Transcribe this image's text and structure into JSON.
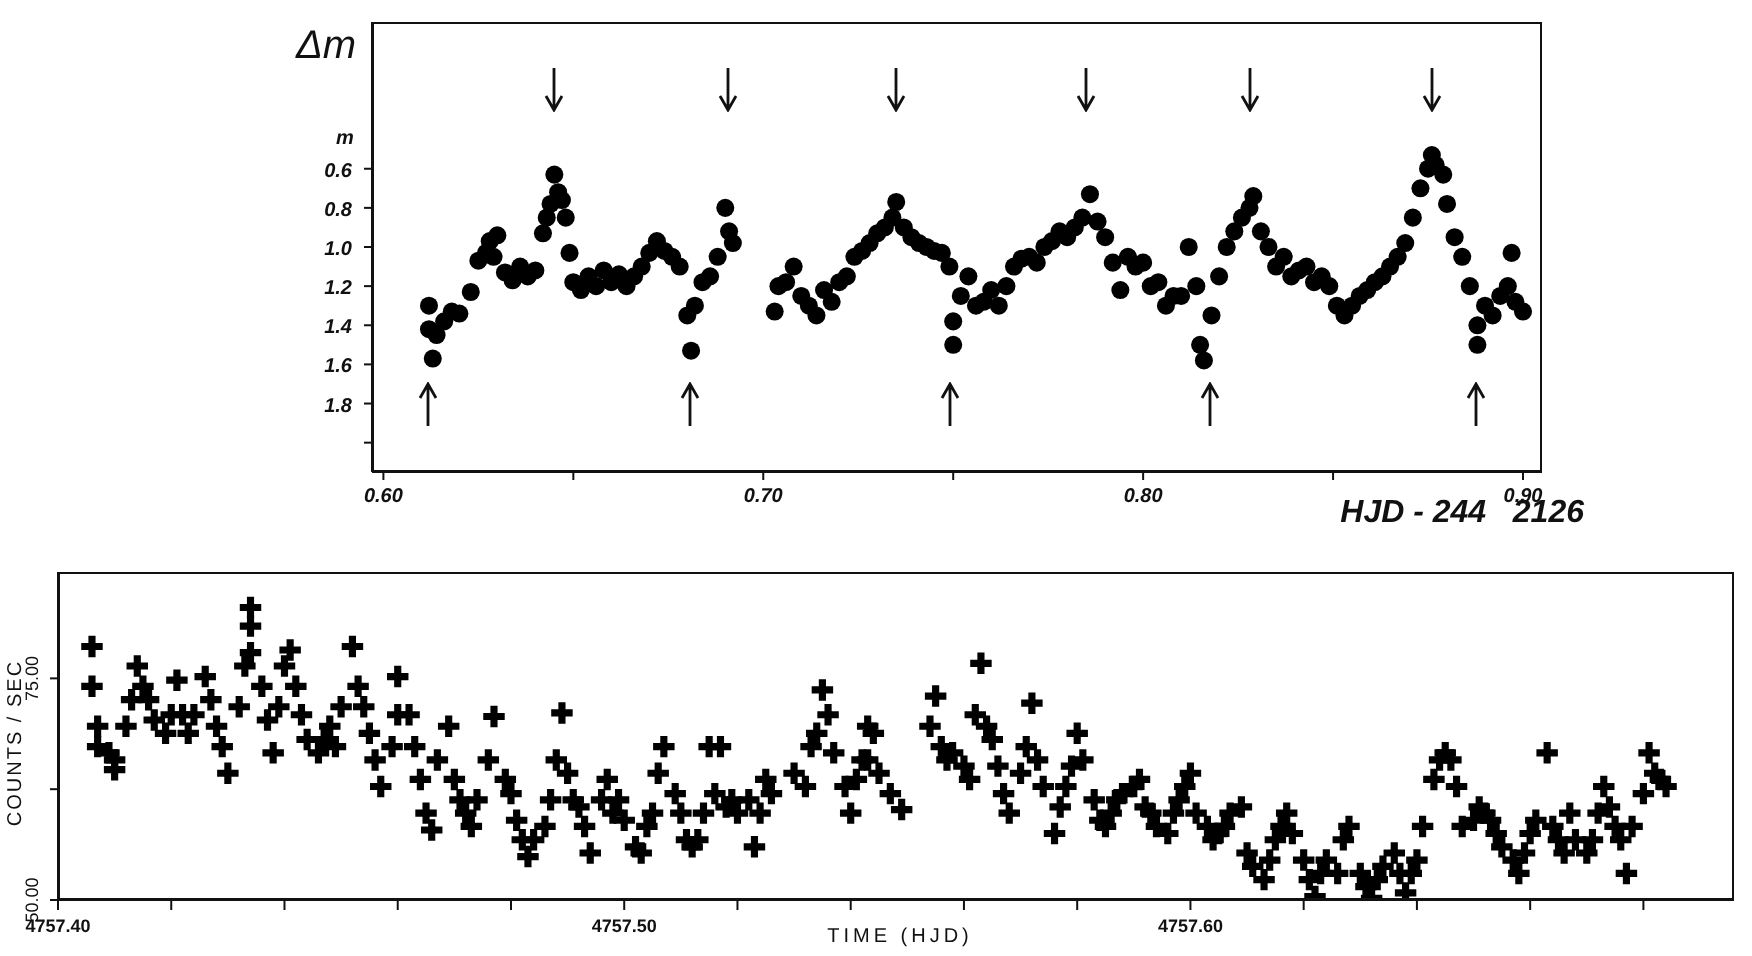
{
  "chart_data": [
    {
      "type": "scatter",
      "xlabel": "HJD - 244   2126",
      "ylabel": "Δm",
      "marker": "circle",
      "xlim": [
        0.597,
        0.905
      ],
      "xticks": [
        {
          "value": 0.6,
          "label": "0.60"
        },
        {
          "value": 0.65,
          "label": null
        },
        {
          "value": 0.7,
          "label": "0.70"
        },
        {
          "value": 0.75,
          "label": null
        },
        {
          "value": 0.8,
          "label": "0.80"
        },
        {
          "value": 0.85,
          "label": null
        },
        {
          "value": 0.9,
          "label": "0.90"
        }
      ],
      "ylim": [
        2.15,
        -0.15
      ],
      "yticks": [
        {
          "value": 0.6,
          "label": "0.6"
        },
        {
          "value": 0.8,
          "label": "0.8"
        },
        {
          "value": 1.0,
          "label": "1.0"
        },
        {
          "value": 1.2,
          "label": "1.2"
        },
        {
          "value": 1.4,
          "label": "1.4"
        },
        {
          "value": 1.6,
          "label": "1.6"
        },
        {
          "value": 1.8,
          "label": "1.8"
        },
        {
          "value": 2.0,
          "label": null
        }
      ],
      "annotations": [
        "m"
      ],
      "series": [
        {
          "color": "#000000",
          "x": [
            0.612,
            0.612,
            0.613,
            0.614,
            0.616,
            0.618,
            0.62,
            0.623,
            0.625,
            0.627,
            0.628,
            0.629,
            0.63,
            0.632,
            0.634,
            0.636,
            0.638,
            0.64,
            0.642,
            0.643,
            0.644,
            0.645,
            0.646,
            0.647,
            0.648,
            0.649,
            0.65,
            0.652,
            0.654,
            0.656,
            0.658,
            0.66,
            0.662,
            0.664,
            0.666,
            0.668,
            0.67,
            0.672,
            0.674,
            0.676,
            0.678,
            0.68,
            0.681,
            0.682,
            0.684,
            0.686,
            0.688,
            0.69,
            0.691,
            0.692,
            0.703,
            0.704,
            0.706,
            0.708,
            0.71,
            0.712,
            0.714,
            0.716,
            0.718,
            0.72,
            0.722,
            0.724,
            0.726,
            0.728,
            0.73,
            0.732,
            0.734,
            0.735,
            0.737,
            0.739,
            0.741,
            0.743,
            0.745,
            0.747,
            0.749,
            0.75,
            0.75,
            0.752,
            0.754,
            0.756,
            0.758,
            0.76,
            0.762,
            0.764,
            0.766,
            0.768,
            0.77,
            0.772,
            0.774,
            0.776,
            0.778,
            0.78,
            0.782,
            0.784,
            0.786,
            0.788,
            0.79,
            0.792,
            0.794,
            0.796,
            0.798,
            0.8,
            0.802,
            0.804,
            0.806,
            0.808,
            0.81,
            0.812,
            0.814,
            0.815,
            0.816,
            0.818,
            0.82,
            0.822,
            0.824,
            0.826,
            0.828,
            0.829,
            0.831,
            0.833,
            0.835,
            0.837,
            0.839,
            0.841,
            0.843,
            0.845,
            0.847,
            0.849,
            0.851,
            0.853,
            0.855,
            0.857,
            0.859,
            0.861,
            0.863,
            0.865,
            0.867,
            0.869,
            0.871,
            0.873,
            0.875,
            0.876,
            0.877,
            0.879,
            0.88,
            0.882,
            0.884,
            0.886,
            0.888,
            0.888,
            0.89,
            0.892,
            0.894,
            0.896,
            0.897,
            0.898,
            0.9
          ],
          "values": [
            1.3,
            1.42,
            1.57,
            1.45,
            1.38,
            1.33,
            1.34,
            1.23,
            1.07,
            1.03,
            0.97,
            1.05,
            0.94,
            1.13,
            1.17,
            1.1,
            1.15,
            1.12,
            0.93,
            0.85,
            0.78,
            0.63,
            0.72,
            0.76,
            0.85,
            1.03,
            1.18,
            1.22,
            1.15,
            1.2,
            1.12,
            1.18,
            1.14,
            1.2,
            1.15,
            1.1,
            1.03,
            0.97,
            1.02,
            1.05,
            1.1,
            1.35,
            1.53,
            1.3,
            1.18,
            1.15,
            1.05,
            0.8,
            0.92,
            0.98,
            1.33,
            1.2,
            1.18,
            1.1,
            1.25,
            1.3,
            1.35,
            1.22,
            1.28,
            1.18,
            1.15,
            1.05,
            1.02,
            0.98,
            0.93,
            0.9,
            0.85,
            0.77,
            0.9,
            0.95,
            0.98,
            1.0,
            1.02,
            1.03,
            1.1,
            1.38,
            1.5,
            1.25,
            1.15,
            1.3,
            1.28,
            1.22,
            1.3,
            1.2,
            1.1,
            1.06,
            1.05,
            1.08,
            1.0,
            0.97,
            0.92,
            0.95,
            0.9,
            0.85,
            0.73,
            0.87,
            0.95,
            1.08,
            1.22,
            1.05,
            1.1,
            1.08,
            1.2,
            1.18,
            1.3,
            1.25,
            1.25,
            1.0,
            1.2,
            1.5,
            1.58,
            1.35,
            1.15,
            1.0,
            0.92,
            0.85,
            0.8,
            0.74,
            0.92,
            1.0,
            1.1,
            1.05,
            1.15,
            1.12,
            1.1,
            1.18,
            1.15,
            1.2,
            1.3,
            1.35,
            1.3,
            1.25,
            1.22,
            1.18,
            1.15,
            1.1,
            1.05,
            0.98,
            0.85,
            0.7,
            0.6,
            0.53,
            0.58,
            0.63,
            0.78,
            0.95,
            1.05,
            1.2,
            1.4,
            1.5,
            1.3,
            1.35,
            1.25,
            1.2,
            1.03,
            1.28,
            1.33
          ]
        }
      ]
    },
    {
      "type": "scatter",
      "xlabel": "TIME (HJD)",
      "ylabel": "COUNTS / SEC",
      "marker": "cross",
      "xlim": [
        4757.4,
        4757.696
      ],
      "xticks": [
        {
          "value": 4757.4,
          "label": "4757.40"
        },
        {
          "value": 4757.42,
          "label": null
        },
        {
          "value": 4757.44,
          "label": null
        },
        {
          "value": 4757.46,
          "label": null
        },
        {
          "value": 4757.48,
          "label": null
        },
        {
          "value": 4757.5,
          "label": "4757.50"
        },
        {
          "value": 4757.52,
          "label": null
        },
        {
          "value": 4757.54,
          "label": null
        },
        {
          "value": 4757.56,
          "label": null
        },
        {
          "value": 4757.58,
          "label": null
        },
        {
          "value": 4757.6,
          "label": "4757.60"
        },
        {
          "value": 4757.62,
          "label": null
        },
        {
          "value": 4757.64,
          "label": null
        },
        {
          "value": 4757.66,
          "label": null
        },
        {
          "value": 4757.68,
          "label": null
        }
      ],
      "ylim": [
        50,
        87
      ],
      "yticks": [
        {
          "value": 50,
          "label": "50.00"
        },
        {
          "value": 62.5,
          "label": null
        },
        {
          "value": 75,
          "label": "75.00"
        }
      ],
      "series": [
        {
          "color": "#000000",
          "x": [
            4757.406,
            4757.406,
            4757.407,
            4757.407,
            4757.409,
            4757.41,
            4757.41,
            4757.412,
            4757.413,
            4757.414,
            4757.415,
            4757.416,
            4757.417,
            4757.419,
            4757.42,
            4757.421,
            4757.422,
            4757.423,
            4757.424,
            4757.426,
            4757.427,
            4757.428,
            4757.429,
            4757.43,
            4757.432,
            4757.433,
            4757.434,
            4757.434,
            4757.434,
            4757.436,
            4757.437,
            4757.438,
            4757.439,
            4757.44,
            4757.441,
            4757.442,
            4757.443,
            4757.444,
            4757.446,
            4757.447,
            4757.448,
            4757.449,
            4757.45,
            4757.452,
            4757.453,
            4757.454,
            4757.455,
            4757.456,
            4757.457,
            4757.459,
            4757.46,
            4757.46,
            4757.462,
            4757.463,
            4757.464,
            4757.465,
            4757.466,
            4757.467,
            4757.469,
            4757.47,
            4757.471,
            4757.472,
            4757.473,
            4757.474,
            4757.476,
            4757.477,
            4757.479,
            4757.48,
            4757.481,
            4757.482,
            4757.483,
            4757.484,
            4757.486,
            4757.487,
            4757.488,
            4757.489,
            4757.49,
            4757.491,
            4757.492,
            4757.493,
            4757.494,
            4757.496,
            4757.497,
            4757.498,
            4757.499,
            4757.5,
            4757.502,
            4757.503,
            4757.504,
            4757.505,
            4757.506,
            4757.507,
            4757.509,
            4757.51,
            4757.511,
            4757.512,
            4757.513,
            4757.514,
            4757.515,
            4757.516,
            4757.517,
            4757.518,
            4757.519,
            4757.52,
            4757.522,
            4757.523,
            4757.524,
            4757.525,
            4757.526,
            4757.53,
            4757.532,
            4757.533,
            4757.534,
            4757.535,
            4757.536,
            4757.537,
            4757.539,
            4757.54,
            4757.541,
            4757.542,
            4757.543,
            4757.544,
            4757.543,
            4757.545,
            4757.547,
            4757.549,
            4757.554,
            4757.555,
            4757.556,
            4757.557,
            4757.558,
            4757.56,
            4757.561,
            4757.562,
            4757.563,
            4757.564,
            4757.565,
            4757.566,
            4757.567,
            4757.568,
            4757.57,
            4757.571,
            4757.572,
            4757.573,
            4757.574,
            4757.576,
            4757.577,
            4757.578,
            4757.579,
            4757.58,
            4757.581,
            4757.583,
            4757.584,
            4757.585,
            4757.586,
            4757.587,
            4757.588,
            4757.59,
            4757.591,
            4757.592,
            4757.593,
            4757.594,
            4757.596,
            4757.597,
            4757.598,
            4757.599,
            4757.6,
            4757.601,
            4757.603,
            4757.604,
            4757.605,
            4757.606,
            4757.607,
            4757.609,
            4757.61,
            4757.611,
            4757.613,
            4757.614,
            4757.615,
            4757.616,
            4757.617,
            4757.618,
            4757.62,
            4757.621,
            4757.622,
            4757.623,
            4757.624,
            4757.626,
            4757.627,
            4757.628,
            4757.63,
            4757.631,
            4757.632,
            4757.633,
            4757.634,
            4757.636,
            4757.637,
            4757.638,
            4757.639,
            4757.64,
            4757.641,
            4757.643,
            4757.644,
            4757.645,
            4757.646,
            4757.647,
            4757.648,
            4757.65,
            4757.651,
            4757.652,
            4757.653,
            4757.654,
            4757.655,
            4757.657,
            4757.658,
            4757.659,
            4757.66,
            4757.661,
            4757.663,
            4757.664,
            4757.665,
            4757.666,
            4757.667,
            4757.668,
            4757.67,
            4757.671,
            4757.672,
            4757.673,
            4757.674,
            4757.675,
            4757.676,
            4757.677,
            4757.678,
            4757.68,
            4757.681,
            4757.682,
            4757.683,
            4757.684
          ],
          "values": [
            78.6,
            74.1,
            69.6,
            67.3,
            66.6,
            65.8,
            64.7,
            69.6,
            72.6,
            76.4,
            74.1,
            72.6,
            70.3,
            68.8,
            70.9,
            74.8,
            70.9,
            68.8,
            70.9,
            75.2,
            72.6,
            69.6,
            67.3,
            64.3,
            71.8,
            76.4,
            80.9,
            83.0,
            77.9,
            74.1,
            70.3,
            66.6,
            71.8,
            76.4,
            78.2,
            74.1,
            70.9,
            68.1,
            66.6,
            68.1,
            69.6,
            67.3,
            71.8,
            78.6,
            74.1,
            71.8,
            68.8,
            65.8,
            62.8,
            67.3,
            70.9,
            75.2,
            70.9,
            67.3,
            63.6,
            59.8,
            57.9,
            65.8,
            69.6,
            63.6,
            61.3,
            59.8,
            58.3,
            61.3,
            65.8,
            70.7,
            63.6,
            62.0,
            59.0,
            56.8,
            54.9,
            56.8,
            58.3,
            61.3,
            65.8,
            71.1,
            64.3,
            61.3,
            60.5,
            58.3,
            55.3,
            61.3,
            63.6,
            59.8,
            61.3,
            59.0,
            56.0,
            55.3,
            58.3,
            59.8,
            64.3,
            67.3,
            62.0,
            59.8,
            56.8,
            56.0,
            56.8,
            59.8,
            67.3,
            62.0,
            67.3,
            60.5,
            61.3,
            59.8,
            61.3,
            56.0,
            59.8,
            63.6,
            62.0,
            64.3,
            62.8,
            67.3,
            68.8,
            73.7,
            70.9,
            66.6,
            62.8,
            59.8,
            63.6,
            65.8,
            69.6,
            68.8,
            65.8,
            64.3,
            62.0,
            60.2,
            69.6,
            73.0,
            67.3,
            65.8,
            66.6,
            65.1,
            63.6,
            70.9,
            76.7,
            69.6,
            68.1,
            65.1,
            62.0,
            59.8,
            64.3,
            67.3,
            72.2,
            65.8,
            62.8,
            57.5,
            60.5,
            62.8,
            65.1,
            68.8,
            65.8,
            61.3,
            59.0,
            58.3,
            59.8,
            61.3,
            62.0,
            62.8,
            63.6,
            60.5,
            59.8,
            58.3,
            57.5,
            59.8,
            61.3,
            62.8,
            64.3,
            59.8,
            58.3,
            56.8,
            57.5,
            58.3,
            59.8,
            60.5,
            55.3,
            53.8,
            52.3,
            54.5,
            56.8,
            58.3,
            59.8,
            57.5,
            54.5,
            52.3,
            50.4,
            53.0,
            54.5,
            53.0,
            56.8,
            58.3,
            53.0,
            51.5,
            50.2,
            52.3,
            53.8,
            55.3,
            53.0,
            50.8,
            53.0,
            54.5,
            58.3,
            63.6,
            65.8,
            66.6,
            65.8,
            62.8,
            58.3,
            59.0,
            60.5,
            59.8,
            59.0,
            57.5,
            56.0,
            54.5,
            53.0,
            55.3,
            57.5,
            59.0,
            66.6,
            58.3,
            56.8,
            55.3,
            59.8,
            56.8,
            55.3,
            56.8,
            59.8,
            62.8,
            60.5,
            58.3,
            56.8,
            53.0,
            58.3,
            62.0,
            66.6,
            64.3,
            63.6,
            62.8
          ]
        }
      ]
    }
  ]
}
